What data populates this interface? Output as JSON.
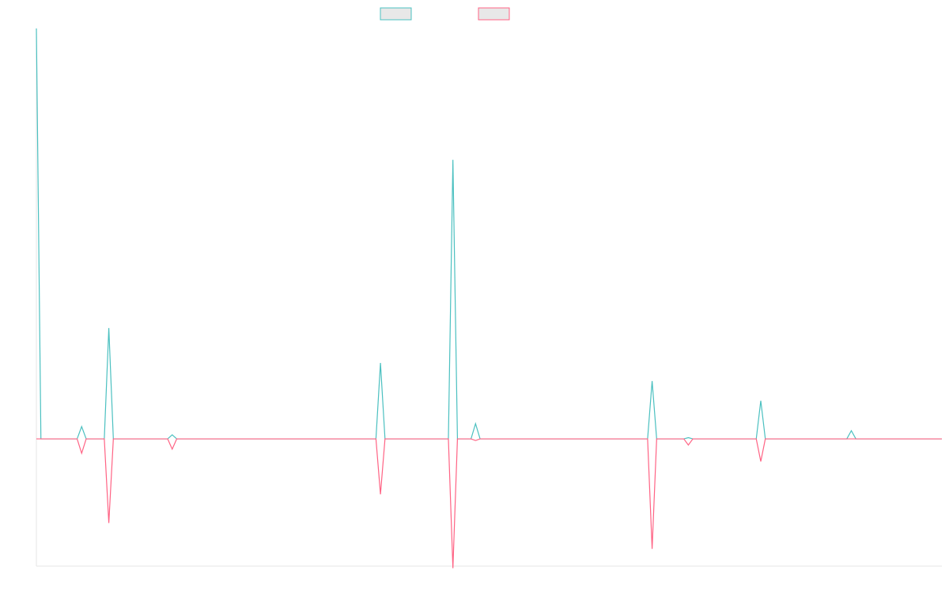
{
  "chart_data": {
    "type": "line",
    "title": "",
    "xlabel": "",
    "ylabel": "",
    "x": [
      0,
      0.5,
      4.5,
      5,
      5.5,
      7.5,
      8,
      8.5,
      14.5,
      15,
      15.5,
      37.5,
      38,
      38.5,
      45.5,
      46,
      46.5,
      48,
      48.5,
      49,
      67.5,
      68,
      68.5,
      71.5,
      72,
      72.5,
      79.5,
      80,
      80.5,
      89.5,
      90,
      90.5,
      100
    ],
    "ylim": [
      -0.31,
      1.0
    ],
    "grid": false,
    "legend": "top-center",
    "series": [
      {
        "color": "#4bc0c0",
        "values": [
          1.0,
          0,
          0,
          0.03,
          0,
          0,
          0.27,
          0,
          0,
          0.01,
          0,
          0,
          0.185,
          0,
          0,
          0.68,
          0,
          0,
          0.037,
          0,
          0,
          0.141,
          0,
          0,
          0.003,
          0,
          0,
          0.093,
          0,
          0,
          0.02,
          0,
          0
        ]
      },
      {
        "color": "#ff6384",
        "values": [
          0,
          0,
          0,
          -0.035,
          0,
          0,
          -0.205,
          0,
          0,
          -0.025,
          0,
          0,
          -0.135,
          0,
          0,
          -0.315,
          0,
          0,
          -0.004,
          0,
          0,
          -0.268,
          0,
          0,
          -0.015,
          0,
          0,
          -0.055,
          0,
          0,
          0,
          0,
          0
        ]
      }
    ]
  }
}
